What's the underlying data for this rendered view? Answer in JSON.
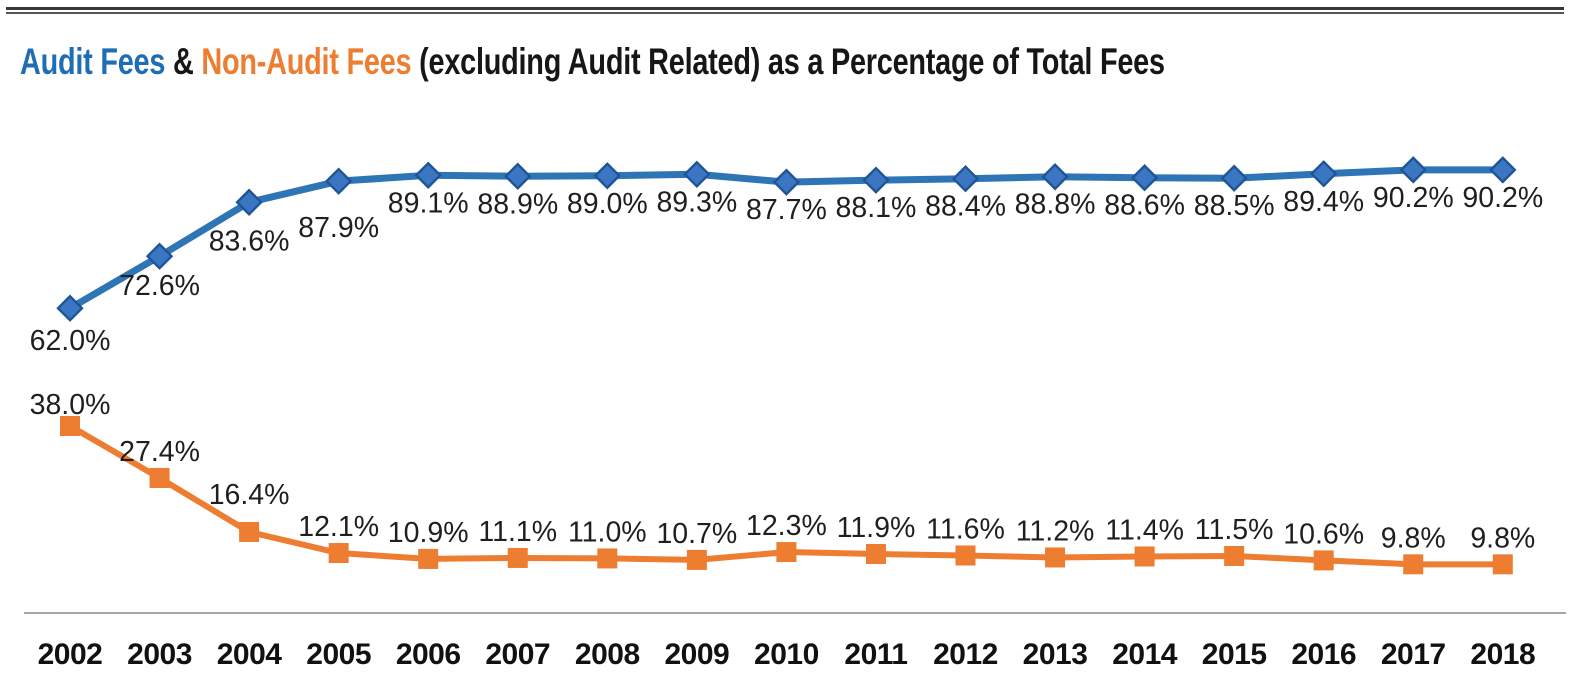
{
  "title": {
    "full": "Audit Fees & Non-Audit Fees (excluding Audit Related) as a Percentage of Total Fees",
    "segments": [
      {
        "text": "Audit Fees",
        "color": "#1f6db5"
      },
      {
        "text": " & ",
        "color": "#161616"
      },
      {
        "text": "Non-Audit Fees",
        "color": "#ed7d31"
      },
      {
        "text": " (excluding Audit Related) as a Percentage of Total Fees",
        "color": "#161616"
      }
    ]
  },
  "chart_data": {
    "type": "line",
    "title": "Audit Fees & Non-Audit Fees (excluding Audit Related) as a Percentage of Total Fees",
    "categories": [
      "2002",
      "2003",
      "2004",
      "2005",
      "2006",
      "2007",
      "2008",
      "2009",
      "2010",
      "2011",
      "2012",
      "2013",
      "2014",
      "2015",
      "2016",
      "2017",
      "2018"
    ],
    "series": [
      {
        "name": "Audit Fees",
        "color": "#2e75b6",
        "marker": "diamond",
        "marker_fill": "#3a76c2",
        "marker_stroke": "#1f5597",
        "label_position": "below",
        "values": [
          62.0,
          72.6,
          83.6,
          87.9,
          89.1,
          88.9,
          89.0,
          89.3,
          87.7,
          88.1,
          88.4,
          88.8,
          88.6,
          88.5,
          89.4,
          90.2,
          90.2
        ],
        "labels": [
          "62.0%",
          "72.6%",
          "83.6%",
          "87.9%",
          "89.1%",
          "88.9%",
          "89.0%",
          "89.3%",
          "87.7%",
          "88.1%",
          "88.4%",
          "88.8%",
          "88.6%",
          "88.5%",
          "89.4%",
          "90.2%",
          "90.2%"
        ]
      },
      {
        "name": "Non-Audit Fees",
        "color": "#ed7d31",
        "marker": "square",
        "marker_fill": "#ed7d31",
        "marker_stroke": "#e2701f",
        "label_position": "above",
        "values": [
          38.0,
          27.4,
          16.4,
          12.1,
          10.9,
          11.1,
          11.0,
          10.7,
          12.3,
          11.9,
          11.6,
          11.2,
          11.4,
          11.5,
          10.6,
          9.8,
          9.8
        ],
        "labels": [
          "38.0%",
          "27.4%",
          "16.4%",
          "12.1%",
          "10.9%",
          "11.1%",
          "11.0%",
          "10.7%",
          "12.3%",
          "11.9%",
          "11.6%",
          "11.2%",
          "11.4%",
          "11.5%",
          "10.6%",
          "9.8%",
          "9.8%"
        ]
      }
    ],
    "xlabel": "",
    "ylabel": "",
    "ylim": [
      0,
      100
    ],
    "grid": false,
    "legend_position": "none",
    "y_axis_visible": false,
    "x_axis_line_color": "#a6a6a6",
    "data_label_color": "#1f1f1f",
    "category_label_color": "#111111"
  }
}
